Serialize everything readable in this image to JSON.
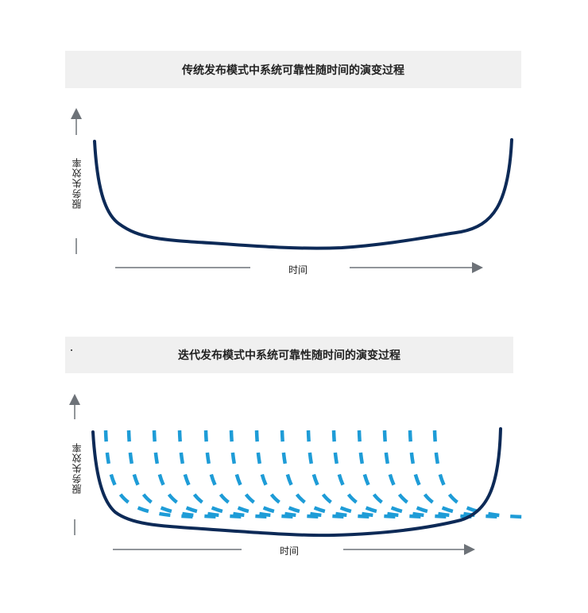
{
  "top_chart": {
    "title": "传统发布模式中系统可靠性随时间的演变过程",
    "ylabel": "服务失效率",
    "xlabel": "时间"
  },
  "bottom_chart": {
    "title": "迭代发布模式中系统可靠性随时间的演变过程",
    "ylabel": "服务失效率",
    "xlabel": "时间"
  },
  "colors": {
    "curve_dark": "#0d2a57",
    "curve_dashed": "#1e9cd7",
    "axis": "#6d7278",
    "title_bg": "#f0f0f0"
  }
}
